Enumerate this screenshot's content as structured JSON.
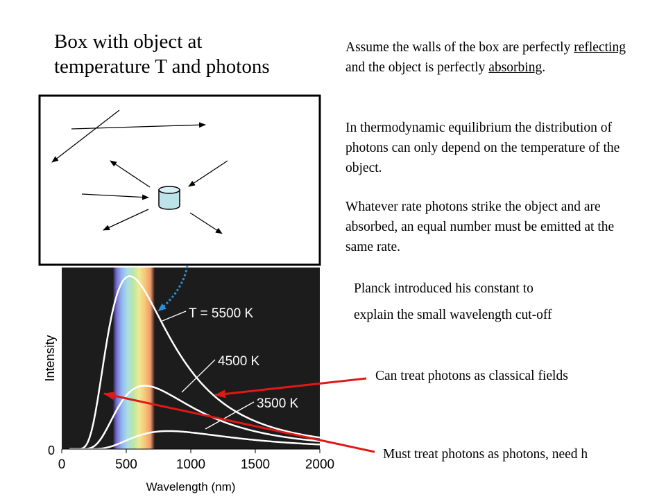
{
  "title": {
    "line1": "Box with object at",
    "line2": "temperature T and photons"
  },
  "paragraph1": {
    "before": "Assume the walls of the box are perfectly ",
    "reflecting": "reflecting",
    "middle": " and the object is perfectly ",
    "absorbing": "absorbing",
    "after": "."
  },
  "paragraph2": "In thermodynamic equilibrium the distribution of photons can only depend on the temperature of the object.",
  "paragraph3": "Whatever rate photons strike the object and are absorbed, an equal number must be emitted at the same rate.",
  "planck": {
    "line1": "Planck  introduced his constant to",
    "line2": "explain the small wavelength cut-off"
  },
  "annotations": {
    "classical": "Can treat photons as classical fields",
    "photons": "Must treat photons as photons, need h"
  },
  "colors": {
    "arrow_red": "#e01818",
    "dotted_arrow": "#2a8fd6",
    "object_fill": "#bde3ea",
    "chart_bg": "#1c1c1c"
  },
  "chart_data": {
    "type": "line",
    "title": "",
    "xlabel": "Wavelength (nm)",
    "ylabel": "Intensity",
    "xlim": [
      0,
      2000
    ],
    "ylim": [
      0,
      1.05
    ],
    "x_ticks": [
      "0",
      "500",
      "1000",
      "1500",
      "2000"
    ],
    "y_ticks": [
      "0"
    ],
    "visible_band_nm": [
      400,
      720
    ],
    "series": [
      {
        "name": "T = 5500 K",
        "temperature": 5500
      },
      {
        "name": "4500 K",
        "temperature": 4500
      },
      {
        "name": "3500 K",
        "temperature": 3500
      }
    ]
  }
}
